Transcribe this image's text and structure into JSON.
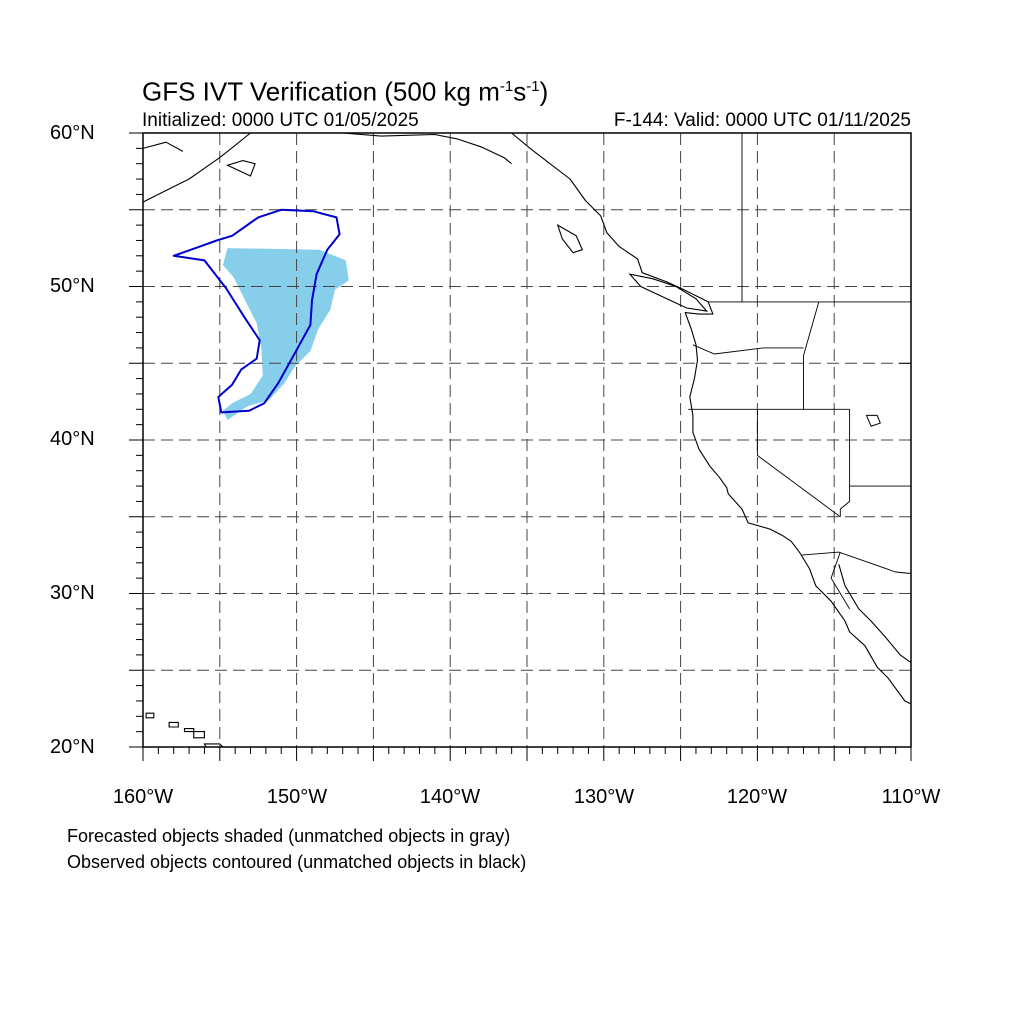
{
  "header": {
    "title_main": "GFS IVT Verification (500 kg m",
    "title_sup1": "-1",
    "title_mid": "s",
    "title_sup2": "-1",
    "title_end": ")",
    "initialized": "Initialized: 0000 UTC 01/05/2025",
    "valid": "F-144: Valid: 0000 UTC 01/11/2025"
  },
  "axes": {
    "lat_labels": [
      "60°N",
      "50°N",
      "40°N",
      "30°N",
      "20°N"
    ],
    "lon_labels": [
      "160°W",
      "150°W",
      "140°W",
      "130°W",
      "120°W",
      "110°W"
    ]
  },
  "chart_data": {
    "type": "map",
    "lon_range": [
      -160,
      -110
    ],
    "lat_range": [
      20,
      60
    ],
    "grid": "dashed every 5 degrees",
    "forecast_object": {
      "color": "#87ceeb",
      "polygon_lonlat": [
        [
          -154.5,
          52.5
        ],
        [
          -148.5,
          52.4
        ],
        [
          -146.8,
          51.7
        ],
        [
          -146.6,
          50.4
        ],
        [
          -147.5,
          49.8
        ],
        [
          -147.8,
          48.5
        ],
        [
          -148.6,
          47.2
        ],
        [
          -149.1,
          45.8
        ],
        [
          -150.1,
          44.8
        ],
        [
          -150.8,
          43.7
        ],
        [
          -151.8,
          42.6
        ],
        [
          -153.2,
          42.2
        ],
        [
          -154.5,
          41.3
        ],
        [
          -154.8,
          41.9
        ],
        [
          -154.2,
          42.4
        ],
        [
          -153.0,
          43.0
        ],
        [
          -152.2,
          44.2
        ],
        [
          -152.3,
          46.0
        ],
        [
          -152.6,
          47.6
        ],
        [
          -153.2,
          48.8
        ],
        [
          -154.1,
          50.6
        ],
        [
          -154.8,
          51.4
        ]
      ]
    },
    "observed_object": {
      "color": "#0000cc",
      "polygon_lonlat": [
        [
          -154.2,
          53.3
        ],
        [
          -152.5,
          54.5
        ],
        [
          -151.0,
          55.0
        ],
        [
          -148.9,
          54.9
        ],
        [
          -147.4,
          54.5
        ],
        [
          -147.2,
          53.4
        ],
        [
          -148.0,
          52.4
        ],
        [
          -148.7,
          50.8
        ],
        [
          -149.0,
          49.1
        ],
        [
          -149.1,
          47.5
        ],
        [
          -150.2,
          45.5
        ],
        [
          -151.2,
          43.7
        ],
        [
          -152.1,
          42.4
        ],
        [
          -153.1,
          41.9
        ],
        [
          -154.9,
          41.8
        ],
        [
          -155.1,
          42.8
        ],
        [
          -154.2,
          43.6
        ],
        [
          -153.6,
          44.6
        ],
        [
          -152.6,
          45.3
        ],
        [
          -152.4,
          46.5
        ],
        [
          -153.4,
          48.0
        ],
        [
          -154.6,
          49.9
        ],
        [
          -156.0,
          51.7
        ],
        [
          -158.0,
          52.0
        ],
        [
          -156.3,
          52.6
        ],
        [
          -155.2,
          53.0
        ]
      ]
    },
    "state_lines": [
      [
        [
          -123.2,
          49.0
        ],
        [
          -110,
          49.0
        ]
      ],
      [
        [
          -124.5,
          42.0
        ],
        [
          -117.0,
          42.0
        ],
        [
          -117.0,
          45.5
        ],
        [
          -116.0,
          49.0
        ]
      ],
      [
        [
          -124.2,
          46.2
        ],
        [
          -122.8,
          45.6
        ],
        [
          -119.6,
          46.0
        ],
        [
          -117.0,
          46.0
        ]
      ],
      [
        [
          -120.0,
          42.0
        ],
        [
          -120.0,
          39.0
        ],
        [
          -114.6,
          35.0
        ]
      ],
      [
        [
          -117.0,
          42.0
        ],
        [
          -114.0,
          42.0
        ]
      ],
      [
        [
          -114.0,
          42.0
        ],
        [
          -114.0,
          36.0
        ],
        [
          -114.6,
          35.5
        ],
        [
          -114.6,
          35.0
        ]
      ],
      [
        [
          -114.0,
          37.0
        ],
        [
          -110,
          37.0
        ]
      ],
      [
        [
          -117.1,
          32.5
        ],
        [
          -114.7,
          32.7
        ],
        [
          -111.0,
          31.4
        ],
        [
          -110,
          31.3
        ]
      ],
      [
        [
          -110.8,
          45.0
        ],
        [
          -110,
          45.0
        ]
      ],
      [
        [
          -114.6,
          32.7
        ],
        [
          -115.2,
          31.0
        ],
        [
          -114.0,
          29.0
        ]
      ],
      [
        [
          -121.0,
          60.0
        ],
        [
          -121.0,
          49.0
        ]
      ]
    ],
    "coastline_main": [
      [
        -136.0,
        60.0
      ],
      [
        -134.8,
        59.0
      ],
      [
        -133.5,
        58.0
      ],
      [
        -132.2,
        57.0
      ],
      [
        -131.2,
        55.6
      ],
      [
        -130.2,
        54.6
      ],
      [
        -129.8,
        53.5
      ],
      [
        -129.0,
        52.6
      ],
      [
        -127.8,
        51.8
      ],
      [
        -127.5,
        50.9
      ],
      [
        -125.9,
        50.3
      ],
      [
        -124.8,
        49.8
      ],
      [
        -123.8,
        49.3
      ],
      [
        -123.2,
        49.0
      ],
      [
        -122.9,
        48.2
      ],
      [
        -123.8,
        48.2
      ],
      [
        -124.7,
        48.3
      ],
      [
        -124.3,
        47.2
      ],
      [
        -124.0,
        46.2
      ],
      [
        -123.9,
        45.2
      ],
      [
        -124.1,
        44.0
      ],
      [
        -124.4,
        42.8
      ],
      [
        -124.2,
        41.6
      ],
      [
        -124.2,
        40.5
      ],
      [
        -123.8,
        39.4
      ],
      [
        -123.1,
        38.3
      ],
      [
        -122.5,
        37.6
      ],
      [
        -122.0,
        36.9
      ],
      [
        -121.9,
        36.5
      ],
      [
        -121.0,
        35.5
      ],
      [
        -120.6,
        34.6
      ],
      [
        -119.2,
        34.2
      ],
      [
        -118.4,
        33.8
      ],
      [
        -117.8,
        33.4
      ],
      [
        -117.2,
        32.6
      ],
      [
        -116.6,
        31.6
      ],
      [
        -116.2,
        30.5
      ],
      [
        -115.2,
        29.5
      ],
      [
        -114.3,
        28.2
      ],
      [
        -114.0,
        27.5
      ],
      [
        -113.0,
        26.6
      ],
      [
        -112.2,
        25.2
      ],
      [
        -111.5,
        24.5
      ],
      [
        -110.4,
        23.0
      ],
      [
        -110.0,
        22.8
      ]
    ],
    "coastline_gulf": [
      [
        -114.7,
        31.9
      ],
      [
        -114.3,
        30.5
      ],
      [
        -113.4,
        29.0
      ],
      [
        -112.6,
        28.2
      ],
      [
        -111.7,
        27.2
      ],
      [
        -110.7,
        26.0
      ],
      [
        -110.0,
        25.5
      ]
    ],
    "coastline_canada_north": [
      [
        -147.0,
        60.0
      ],
      [
        -144.5,
        59.8
      ],
      [
        -141.0,
        59.9
      ],
      [
        -139.5,
        59.6
      ],
      [
        -138.0,
        59.1
      ],
      [
        -136.5,
        58.4
      ],
      [
        -136.0,
        58.0
      ]
    ],
    "vancouver_island": [
      [
        -128.3,
        50.8
      ],
      [
        -126.8,
        50.5
      ],
      [
        -125.3,
        50.0
      ],
      [
        -124.0,
        49.2
      ],
      [
        -123.3,
        48.4
      ],
      [
        -124.6,
        48.6
      ],
      [
        -125.9,
        49.2
      ],
      [
        -127.6,
        50.0
      ],
      [
        -128.3,
        50.8
      ]
    ],
    "haida_gwaii": [
      [
        -133.0,
        54.0
      ],
      [
        -131.8,
        53.3
      ],
      [
        -131.4,
        52.4
      ],
      [
        -132.0,
        52.2
      ],
      [
        -132.7,
        53.1
      ],
      [
        -133.0,
        54.0
      ]
    ],
    "alaska_coast": [
      [
        -160.0,
        55.5
      ],
      [
        -158.6,
        56.2
      ],
      [
        -157.0,
        57.0
      ],
      [
        -156.0,
        57.7
      ],
      [
        -155.0,
        58.4
      ],
      [
        -154.0,
        59.2
      ],
      [
        -153.0,
        60.0
      ]
    ],
    "alaska_coast2": [
      [
        -160.0,
        59.0
      ],
      [
        -158.5,
        59.4
      ],
      [
        -157.4,
        58.8
      ]
    ],
    "kodiak": [
      [
        -154.5,
        57.9
      ],
      [
        -153.0,
        57.2
      ],
      [
        -152.7,
        58.0
      ],
      [
        -153.5,
        58.2
      ],
      [
        -154.5,
        57.9
      ]
    ],
    "hawaii": [
      [
        [
          -159.8,
          22.2
        ],
        [
          -159.3,
          22.2
        ],
        [
          -159.3,
          21.9
        ],
        [
          -159.8,
          21.9
        ]
      ],
      [
        [
          -158.3,
          21.6
        ],
        [
          -157.7,
          21.6
        ],
        [
          -157.7,
          21.3
        ],
        [
          -158.3,
          21.3
        ]
      ],
      [
        [
          -157.3,
          21.2
        ],
        [
          -156.7,
          21.2
        ],
        [
          -156.7,
          21.0
        ],
        [
          -157.3,
          21.0
        ]
      ],
      [
        [
          -156.7,
          21.0
        ],
        [
          -156.0,
          21.0
        ],
        [
          -156.0,
          20.6
        ],
        [
          -156.7,
          20.6
        ]
      ],
      [
        [
          -156.0,
          20.2
        ],
        [
          -155.0,
          20.2
        ],
        [
          -154.8,
          19.6
        ],
        [
          -155.9,
          19.6
        ]
      ]
    ],
    "lakes": [
      [
        [
          -112.9,
          41.6
        ],
        [
          -112.2,
          41.6
        ],
        [
          -112.0,
          41.1
        ],
        [
          -112.6,
          40.9
        ]
      ]
    ]
  },
  "footer": {
    "line1": "Forecasted objects shaded (unmatched objects in gray)",
    "line2": "Observed objects contoured (unmatched objects in black)"
  }
}
